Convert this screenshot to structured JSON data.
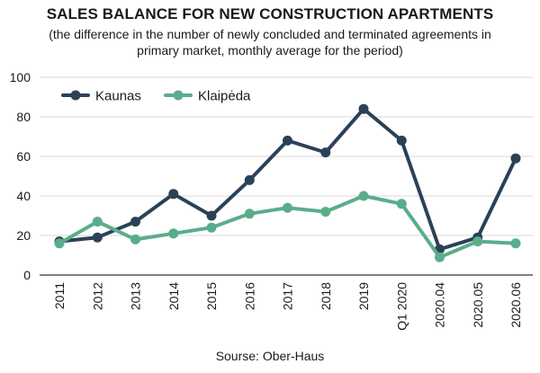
{
  "title": "SALES BALANCE FOR NEW CONSTRUCTION APARTMENTS",
  "subtitle": "(the difference in the number of newly concluded and terminated agreements in primary market, monthly average for the period)",
  "source": "Sourse: Ober-Haus",
  "chart_data": {
    "type": "line",
    "title": "SALES BALANCE FOR NEW CONSTRUCTION APARTMENTS",
    "subtitle": "(the difference in the number of newly concluded and terminated agreements in primary market, monthly average for the period)",
    "xlabel": "",
    "ylabel": "",
    "categories": [
      "2011",
      "2012",
      "2013",
      "2014",
      "2015",
      "2016",
      "2017",
      "2018",
      "2019",
      "Q1 2020",
      "2020.04",
      "2020.05",
      "2020.06"
    ],
    "ylim": [
      0,
      100
    ],
    "yticks": [
      0,
      20,
      40,
      60,
      80,
      100
    ],
    "grid": true,
    "legend_position": "top-left",
    "series": [
      {
        "name": "Kaunas",
        "color": "#2b4157",
        "values": [
          17,
          19,
          27,
          41,
          30,
          48,
          68,
          62,
          84,
          68,
          13,
          19,
          59
        ]
      },
      {
        "name": "Klaipėda",
        "color": "#5aad8a",
        "values": [
          16,
          27,
          18,
          21,
          24,
          31,
          34,
          32,
          40,
          36,
          9,
          17,
          16
        ]
      }
    ]
  }
}
